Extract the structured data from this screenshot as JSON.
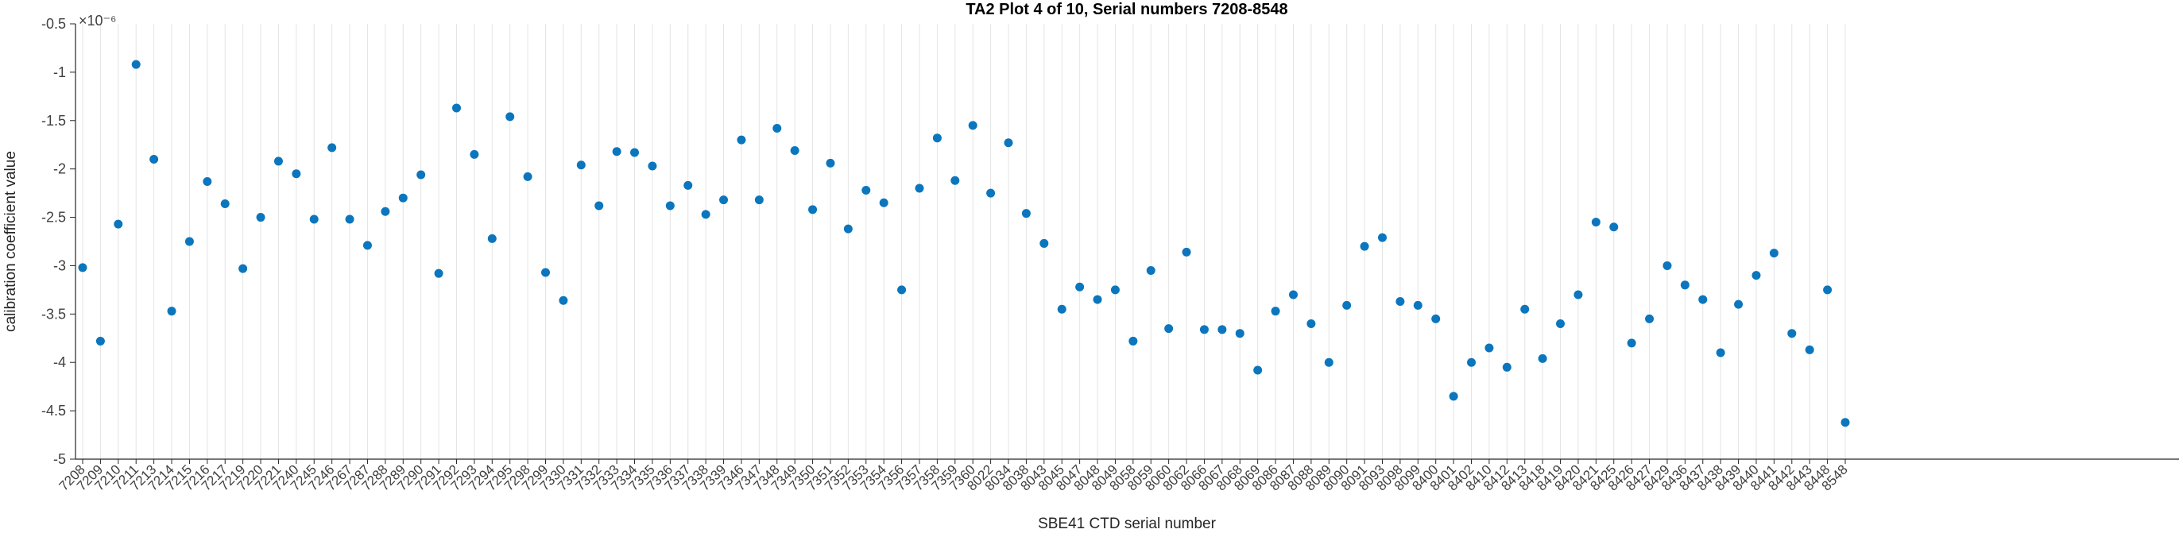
{
  "chart_data": {
    "type": "scatter",
    "title": "TA2 Plot 4 of 10, Serial numbers 7208-8548",
    "xlabel": "SBE41 CTD serial number",
    "ylabel": "calibration coefficient value",
    "scale_label": "×10⁻⁶",
    "y_unit_multiplier": "1e-6",
    "ylim": [
      -5,
      -0.5
    ],
    "y_ticks": [
      -5,
      -4.5,
      -4,
      -3.5,
      -3,
      -2.5,
      -2,
      -1.5,
      -1,
      -0.5
    ],
    "y_tick_labels": [
      "-5",
      "-4.5",
      "-4",
      "-3.5",
      "-3",
      "-2.5",
      "-2",
      "-1.5",
      "-1",
      "-0.5"
    ],
    "grid": "vertical-only",
    "legend": "none",
    "marker": "filled-circle",
    "marker_color": "#0b76bd",
    "grid_color": "#e4e4e4",
    "axis_color": "#262626",
    "tick_text_color": "#404040",
    "categories": [
      "7208",
      "7209",
      "7210",
      "7211",
      "7213",
      "7214",
      "7215",
      "7216",
      "7217",
      "7219",
      "7220",
      "7221",
      "7240",
      "7245",
      "7246",
      "7267",
      "7287",
      "7288",
      "7289",
      "7290",
      "7291",
      "7292",
      "7293",
      "7294",
      "7295",
      "7298",
      "7299",
      "7330",
      "7331",
      "7332",
      "7333",
      "7334",
      "7335",
      "7336",
      "7337",
      "7338",
      "7339",
      "7346",
      "7347",
      "7348",
      "7349",
      "7350",
      "7351",
      "7352",
      "7353",
      "7354",
      "7356",
      "7357",
      "7358",
      "7359",
      "7360",
      "8022",
      "8034",
      "8038",
      "8043",
      "8045",
      "8047",
      "8048",
      "8049",
      "8058",
      "8059",
      "8060",
      "8062",
      "8066",
      "8067",
      "8068",
      "8069",
      "8086",
      "8087",
      "8088",
      "8089",
      "8090",
      "8091",
      "8093",
      "8098",
      "8099",
      "8400",
      "8401",
      "8402",
      "8410",
      "8412",
      "8413",
      "8418",
      "8419",
      "8420",
      "8421",
      "8425",
      "8426",
      "8427",
      "8429",
      "8436",
      "8437",
      "8438",
      "8439",
      "8440",
      "8441",
      "8442",
      "8443",
      "8448",
      "8548"
    ],
    "values": [
      -3.02,
      -3.78,
      -2.57,
      -0.92,
      -1.9,
      -3.47,
      -2.75,
      -2.13,
      -2.36,
      -3.03,
      -2.5,
      -1.92,
      -2.05,
      -2.52,
      -1.78,
      -2.52,
      -2.79,
      -2.44,
      -2.3,
      -2.06,
      -3.08,
      -1.37,
      -1.85,
      -2.72,
      -1.46,
      -2.08,
      -3.07,
      -3.36,
      -1.96,
      -2.38,
      -1.82,
      -1.83,
      -1.97,
      -2.38,
      -2.17,
      -2.47,
      -2.32,
      -1.7,
      -2.32,
      -1.58,
      -1.81,
      -2.42,
      -1.94,
      -2.62,
      -2.22,
      -2.35,
      -3.25,
      -2.2,
      -1.68,
      -2.12,
      -1.55,
      -2.25,
      -1.73,
      -2.46,
      -2.77,
      -3.45,
      -3.22,
      -3.35,
      -3.25,
      -3.78,
      -3.05,
      -3.65,
      -2.86,
      -3.66,
      -3.66,
      -3.7,
      -4.08,
      -3.47,
      -3.3,
      -3.6,
      -4.0,
      -3.41,
      -2.8,
      -2.71,
      -3.37,
      -3.41,
      -3.55,
      -4.35,
      -4.0,
      -3.85,
      -4.05,
      -3.45,
      -3.96,
      -3.6,
      -3.3,
      -2.55,
      -2.6,
      -3.8,
      -3.55,
      -3.0,
      -3.2,
      -3.35,
      -3.9,
      -3.4,
      -3.1,
      -2.87,
      -3.7,
      -3.87,
      -3.25,
      -4.62
    ]
  }
}
